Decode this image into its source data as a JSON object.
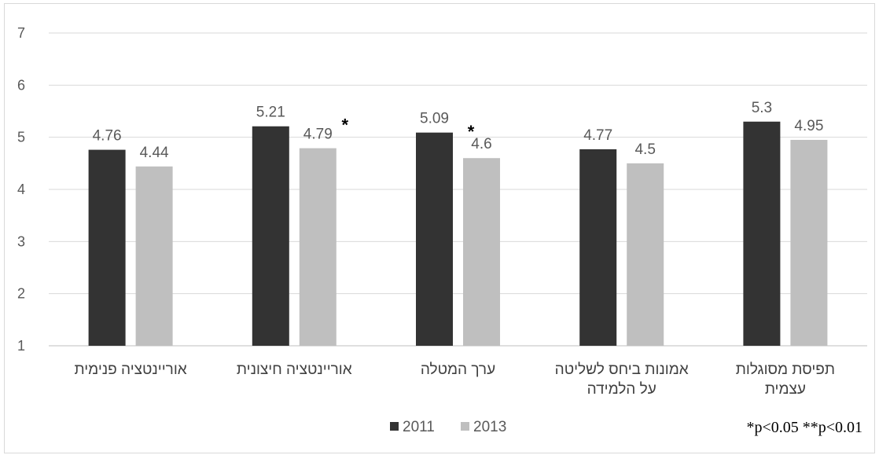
{
  "chart_data": {
    "type": "bar",
    "categories": [
      [
        "אוריינטציה פנימית"
      ],
      [
        "אוריינטציה חיצונית"
      ],
      [
        "ערך המטלה"
      ],
      [
        "אמונות ביחס לשליטה",
        "על הלמידה"
      ],
      [
        "תפיסת מסוגלות",
        "עצמית"
      ]
    ],
    "series": [
      {
        "name": "2011",
        "color": "#333333",
        "values": [
          4.76,
          5.21,
          5.09,
          4.77,
          5.3
        ]
      },
      {
        "name": "2013",
        "color": "#bfbfbf",
        "values": [
          4.44,
          4.79,
          4.6,
          4.5,
          4.95
        ]
      }
    ],
    "significance_markers": [
      null,
      "*",
      "*",
      null,
      null
    ],
    "ylim": [
      1,
      7
    ],
    "yticks": [
      1,
      2,
      3,
      4,
      5,
      6,
      7
    ],
    "grid": true,
    "legend_position": "bottom-center",
    "note": "*p<0.05 **p<0.01",
    "title": "",
    "xlabel": "",
    "ylabel": ""
  }
}
